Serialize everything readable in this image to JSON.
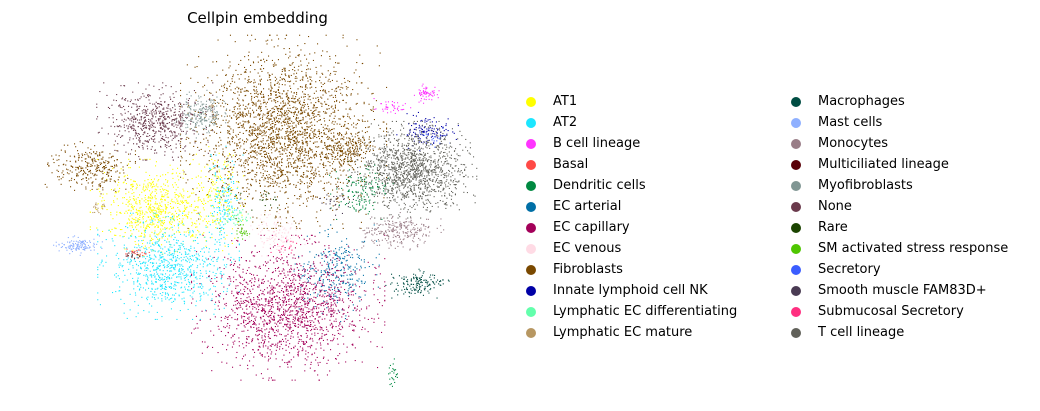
{
  "chart_data": {
    "type": "scatter",
    "title": "Cellpin embedding",
    "xlabel": "",
    "ylabel": "",
    "grid": false,
    "axes_visible": false,
    "legend_placement": "right",
    "series": [
      {
        "name": "AT1",
        "color": "#ffff00",
        "clusters": [
          {
            "cx": 0.27,
            "cy": 0.47,
            "rx": 0.1,
            "ry": 0.1,
            "n": 700
          },
          {
            "cx": 0.4,
            "cy": 0.44,
            "rx": 0.05,
            "ry": 0.12,
            "n": 200
          }
        ]
      },
      {
        "name": "AT2",
        "color": "#1ce6ff",
        "clusters": [
          {
            "cx": 0.3,
            "cy": 0.64,
            "rx": 0.11,
            "ry": 0.11,
            "n": 800
          },
          {
            "cx": 0.42,
            "cy": 0.46,
            "rx": 0.03,
            "ry": 0.12,
            "n": 150
          }
        ]
      },
      {
        "name": "B cell lineage",
        "color": "#ff34ff",
        "clusters": [
          {
            "cx": 0.86,
            "cy": 0.14,
            "rx": 0.02,
            "ry": 0.02,
            "n": 60
          },
          {
            "cx": 0.78,
            "cy": 0.18,
            "rx": 0.04,
            "ry": 0.02,
            "n": 40
          }
        ]
      },
      {
        "name": "Basal",
        "color": "#ff4a46",
        "clusters": [
          {
            "cx": 0.23,
            "cy": 0.6,
            "rx": 0.02,
            "ry": 0.01,
            "n": 20
          }
        ]
      },
      {
        "name": "Dendritic cells",
        "color": "#008941",
        "clusters": [
          {
            "cx": 0.72,
            "cy": 0.42,
            "rx": 0.05,
            "ry": 0.06,
            "n": 150
          },
          {
            "cx": 0.79,
            "cy": 0.95,
            "rx": 0.01,
            "ry": 0.03,
            "n": 25
          }
        ]
      },
      {
        "name": "EC arterial",
        "color": "#006fa6",
        "clusters": [
          {
            "cx": 0.66,
            "cy": 0.66,
            "rx": 0.07,
            "ry": 0.1,
            "n": 300
          }
        ]
      },
      {
        "name": "EC capillary",
        "color": "#a30059",
        "clusters": [
          {
            "cx": 0.56,
            "cy": 0.76,
            "rx": 0.15,
            "ry": 0.15,
            "n": 1600
          }
        ]
      },
      {
        "name": "EC venous",
        "color": "#ffdbe5",
        "clusters": [
          {
            "cx": 0.53,
            "cy": 0.54,
            "rx": 0.05,
            "ry": 0.05,
            "n": 120
          }
        ]
      },
      {
        "name": "Fibroblasts",
        "color": "#7a4900",
        "clusters": [
          {
            "cx": 0.55,
            "cy": 0.25,
            "rx": 0.16,
            "ry": 0.2,
            "n": 2400
          },
          {
            "cx": 0.13,
            "cy": 0.35,
            "rx": 0.07,
            "ry": 0.06,
            "n": 300
          },
          {
            "cx": 0.69,
            "cy": 0.3,
            "rx": 0.05,
            "ry": 0.05,
            "n": 200
          }
        ]
      },
      {
        "name": "Innate lymphoid cell NK",
        "color": "#0000a6",
        "clusters": [
          {
            "cx": 0.86,
            "cy": 0.25,
            "rx": 0.05,
            "ry": 0.04,
            "n": 120
          }
        ]
      },
      {
        "name": "Lymphatic EC differentiating",
        "color": "#63ffac",
        "clusters": [
          {
            "cx": 0.45,
            "cy": 0.5,
            "rx": 0.02,
            "ry": 0.02,
            "n": 40
          }
        ]
      },
      {
        "name": "Lymphatic EC mature",
        "color": "#b79762",
        "clusters": [
          {
            "cx": 0.15,
            "cy": 0.47,
            "rx": 0.015,
            "ry": 0.02,
            "n": 20
          }
        ]
      },
      {
        "name": "Macrophages",
        "color": "#004d43",
        "clusters": [
          {
            "cx": 0.84,
            "cy": 0.69,
            "rx": 0.05,
            "ry": 0.03,
            "n": 150
          }
        ]
      },
      {
        "name": "Mast cells",
        "color": "#8fb0ff",
        "clusters": [
          {
            "cx": 0.1,
            "cy": 0.58,
            "rx": 0.04,
            "ry": 0.02,
            "n": 120
          }
        ]
      },
      {
        "name": "Monocytes",
        "color": "#997d87",
        "clusters": [
          {
            "cx": 0.8,
            "cy": 0.54,
            "rx": 0.07,
            "ry": 0.04,
            "n": 250
          }
        ]
      },
      {
        "name": "Multiciliated lineage",
        "color": "#5a0007",
        "clusters": [
          {
            "cx": 0.22,
            "cy": 0.61,
            "rx": 0.015,
            "ry": 0.008,
            "n": 15
          }
        ]
      },
      {
        "name": "Myofibroblasts",
        "color": "#809693",
        "clusters": [
          {
            "cx": 0.37,
            "cy": 0.2,
            "rx": 0.04,
            "ry": 0.05,
            "n": 200
          }
        ]
      },
      {
        "name": "None",
        "color": "#6a3a4c",
        "clusters": [
          {
            "cx": 0.27,
            "cy": 0.22,
            "rx": 0.09,
            "ry": 0.08,
            "n": 600
          }
        ]
      },
      {
        "name": "Rare",
        "color": "#1b4400",
        "clusters": [
          {
            "cx": 0.5,
            "cy": 0.45,
            "rx": 0.05,
            "ry": 0.05,
            "n": 20
          }
        ]
      },
      {
        "name": "SM activated stress response",
        "color": "#4fc601",
        "clusters": [
          {
            "cx": 0.46,
            "cy": 0.54,
            "rx": 0.015,
            "ry": 0.015,
            "n": 25
          }
        ]
      },
      {
        "name": "Secretory",
        "color": "#3b5dff",
        "clusters": [
          {
            "cx": 0.88,
            "cy": 0.27,
            "rx": 0.03,
            "ry": 0.03,
            "n": 20
          }
        ]
      },
      {
        "name": "Smooth muscle FAM83D+",
        "color": "#4a3b53",
        "clusters": [
          {
            "cx": 0.66,
            "cy": 0.45,
            "rx": 0.03,
            "ry": 0.03,
            "n": 30
          }
        ]
      },
      {
        "name": "Submucosal Secretory",
        "color": "#ff2f80",
        "clusters": [
          {
            "cx": 0.56,
            "cy": 0.58,
            "rx": 0.03,
            "ry": 0.03,
            "n": 20
          }
        ]
      },
      {
        "name": "T cell lineage",
        "color": "#61615a",
        "clusters": [
          {
            "cx": 0.83,
            "cy": 0.36,
            "rx": 0.1,
            "ry": 0.1,
            "n": 1300
          }
        ]
      }
    ]
  }
}
